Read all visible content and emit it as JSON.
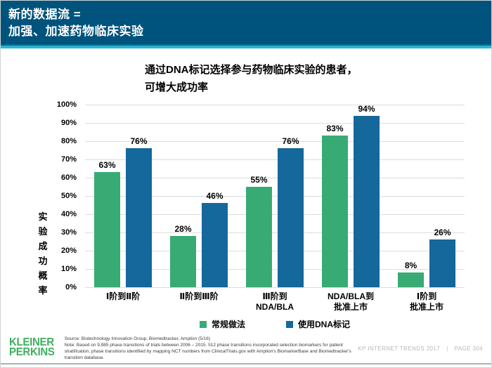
{
  "header": {
    "title_lines": [
      "新的数据流 =",
      "加强、加速药物临床实验"
    ]
  },
  "chart_data": {
    "type": "bar",
    "title": "通过DNA标记选择参与药物临床实验的患者，可增大成功率",
    "title_lines": [
      "通过DNA标记选择参与药物临床实验的患者，",
      "可增大成功率"
    ],
    "ylabel": "实验成功概率",
    "ylim": [
      0,
      100
    ],
    "ytick_step": 10,
    "ytick_suffix": "%",
    "value_label_suffix": "%",
    "grid": true,
    "legend_position": "bottom",
    "categories": [
      [
        "Ⅰ阶到Ⅱ阶"
      ],
      [
        "Ⅱ阶到Ⅲ阶"
      ],
      [
        "Ⅲ阶到",
        "NDA/BLA"
      ],
      [
        "NDA/BLA到",
        "批准上市"
      ],
      [
        "Ⅰ阶到",
        "批准上市"
      ]
    ],
    "series": [
      {
        "name": "常规做法",
        "color": "#38AB75",
        "values": [
          63,
          28,
          55,
          83,
          8
        ]
      },
      {
        "name": "使用DNA标记",
        "color": "#14689B",
        "values": [
          76,
          46,
          76,
          94,
          26
        ]
      }
    ]
  },
  "footer": {
    "logo_line1": "KLEINER",
    "logo_line2": "PERKINS",
    "source_line": "Source: Biotechnology Innovation Group, Biomedtracker, Amplion (5/16)",
    "note_line": "Note: Based on 9,985 phase transitions of trials between 2006 – 2015. 512 phase transitions incorporated selection biomarkers for patient stratification; phase transitions identified by mapping NCT numbers from ClinicalTrials.gov with Amplion's BiomarkerBase and Biomedtracker's transition database.",
    "brand_text": "KP INTERNET TRENDS 2017",
    "separator": "|",
    "page_text": "PAGE 304"
  },
  "colors": {
    "banner": "#00537C",
    "accent_dark": "#006F8E",
    "accent_cyan": "#2CB5D3",
    "gridline": "#DCDCDC",
    "logo_green": "#3EAE5F"
  }
}
